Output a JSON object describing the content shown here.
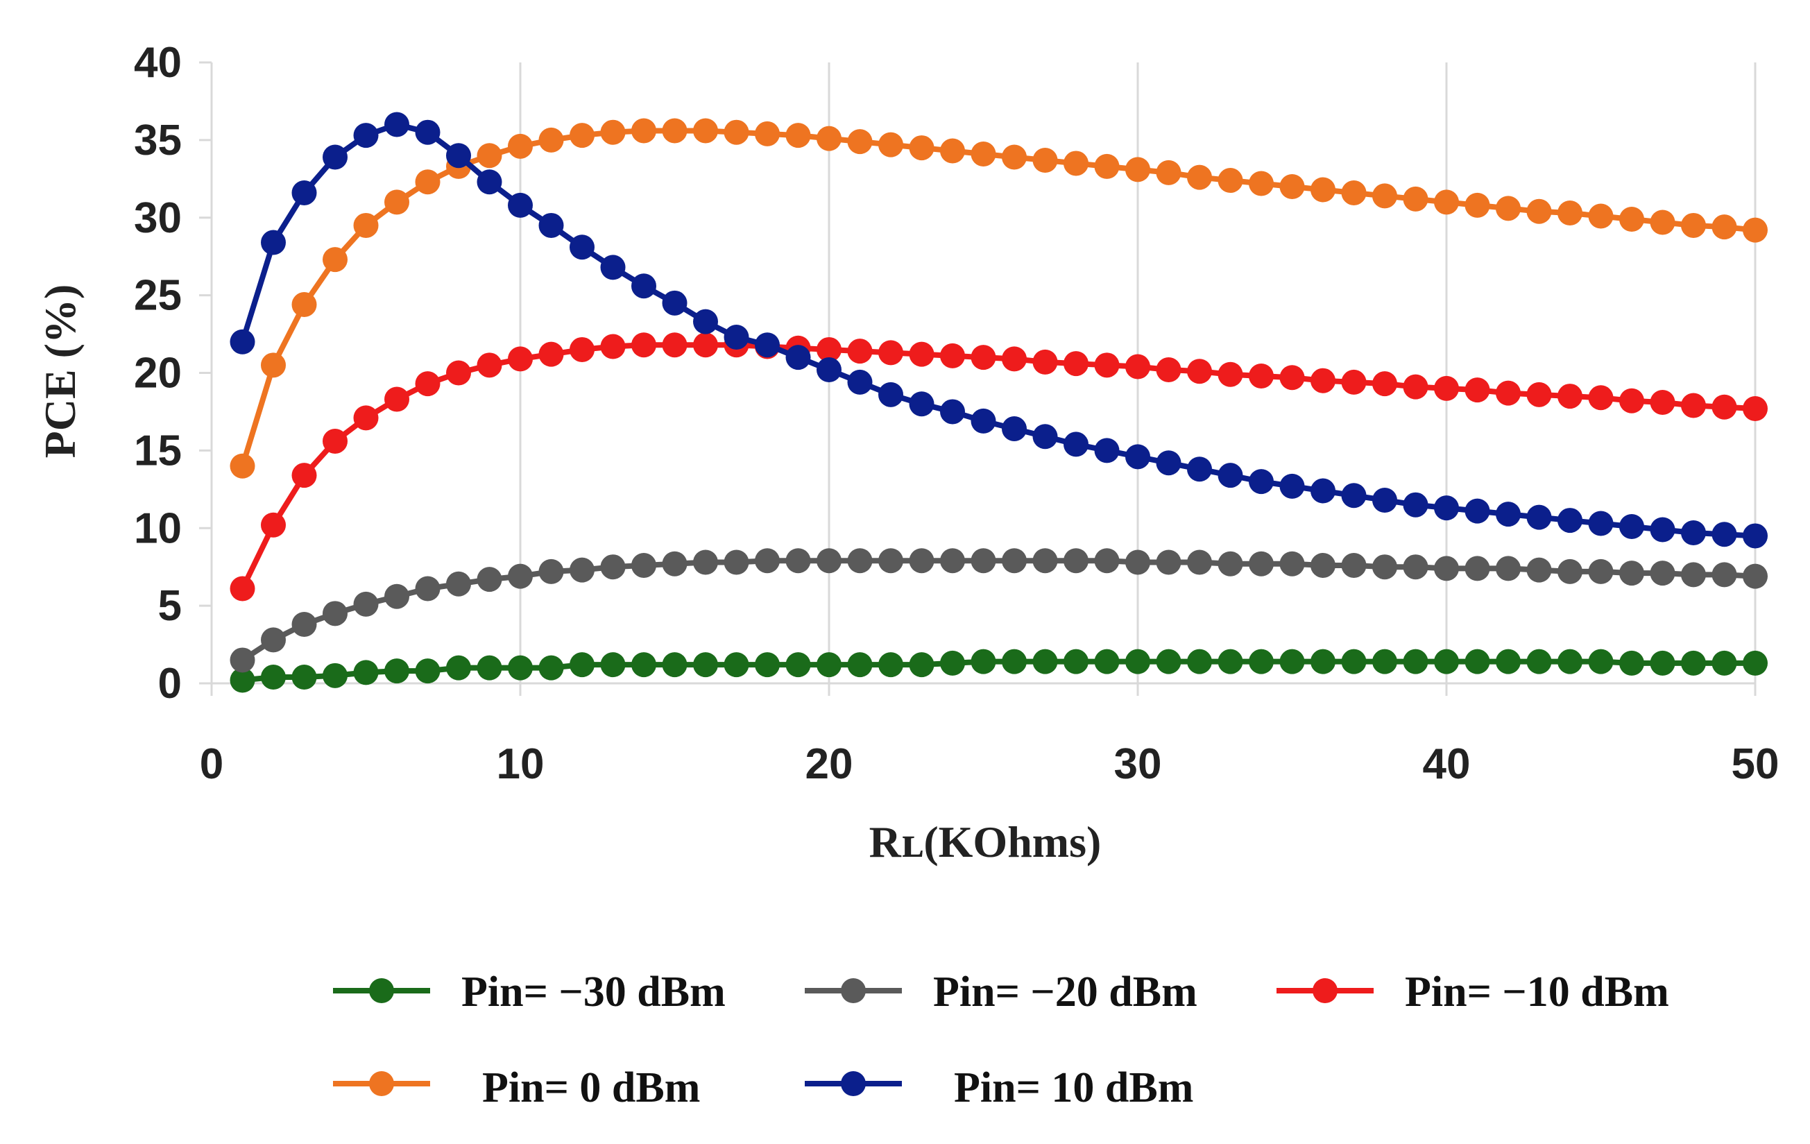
{
  "chart_data": {
    "type": "line",
    "title": "",
    "xlabel": "Rʟ(KOhms)",
    "ylabel": "PCE (%)",
    "xlim": [
      0,
      50
    ],
    "ylim": [
      0,
      40
    ],
    "x_ticks": [
      0,
      10,
      20,
      30,
      40,
      50
    ],
    "y_ticks": [
      0,
      5,
      10,
      15,
      20,
      25,
      30,
      35,
      40
    ],
    "grid": "vertical",
    "legend_position": "bottom",
    "x": [
      1,
      2,
      3,
      4,
      5,
      6,
      7,
      8,
      9,
      10,
      11,
      12,
      13,
      14,
      15,
      16,
      17,
      18,
      19,
      20,
      21,
      22,
      23,
      24,
      25,
      26,
      27,
      28,
      29,
      30,
      31,
      32,
      33,
      34,
      35,
      36,
      37,
      38,
      39,
      40,
      41,
      42,
      43,
      44,
      45,
      46,
      47,
      48,
      49,
      50
    ],
    "series": [
      {
        "name": "Pin= −30 dBm",
        "color": "#1a6b1a",
        "values": [
          0.2,
          0.4,
          0.4,
          0.5,
          0.7,
          0.8,
          0.8,
          1.0,
          1.0,
          1.0,
          1.0,
          1.2,
          1.2,
          1.2,
          1.2,
          1.2,
          1.2,
          1.2,
          1.2,
          1.2,
          1.2,
          1.2,
          1.2,
          1.3,
          1.4,
          1.4,
          1.4,
          1.4,
          1.4,
          1.4,
          1.4,
          1.4,
          1.4,
          1.4,
          1.4,
          1.4,
          1.4,
          1.4,
          1.4,
          1.4,
          1.4,
          1.4,
          1.4,
          1.4,
          1.4,
          1.3,
          1.3,
          1.3,
          1.3,
          1.3
        ]
      },
      {
        "name": "Pin= −20 dBm",
        "color": "#5a5a5a",
        "values": [
          1.5,
          2.8,
          3.8,
          4.5,
          5.1,
          5.6,
          6.1,
          6.4,
          6.7,
          6.9,
          7.2,
          7.3,
          7.5,
          7.6,
          7.7,
          7.8,
          7.8,
          7.9,
          7.9,
          7.9,
          7.9,
          7.9,
          7.9,
          7.9,
          7.9,
          7.9,
          7.9,
          7.9,
          7.9,
          7.8,
          7.8,
          7.8,
          7.7,
          7.7,
          7.7,
          7.6,
          7.6,
          7.5,
          7.5,
          7.4,
          7.4,
          7.4,
          7.3,
          7.2,
          7.2,
          7.1,
          7.1,
          7.0,
          7.0,
          6.9
        ]
      },
      {
        "name": "Pin= −10 dBm",
        "color": "#ee1c1c",
        "values": [
          6.1,
          10.2,
          13.4,
          15.6,
          17.1,
          18.3,
          19.3,
          20.0,
          20.5,
          20.9,
          21.2,
          21.5,
          21.7,
          21.8,
          21.8,
          21.8,
          21.8,
          21.7,
          21.6,
          21.5,
          21.4,
          21.3,
          21.2,
          21.1,
          21.0,
          20.9,
          20.7,
          20.6,
          20.5,
          20.4,
          20.2,
          20.1,
          19.9,
          19.8,
          19.7,
          19.5,
          19.4,
          19.3,
          19.1,
          19.0,
          18.9,
          18.7,
          18.6,
          18.5,
          18.4,
          18.2,
          18.1,
          17.9,
          17.8,
          17.7
        ]
      },
      {
        "name": "Pin= 0 dBm",
        "color": "#ee7421",
        "values": [
          14.0,
          20.5,
          24.4,
          27.3,
          29.5,
          31.0,
          32.3,
          33.3,
          34.0,
          34.6,
          35.0,
          35.3,
          35.5,
          35.6,
          35.6,
          35.6,
          35.5,
          35.4,
          35.3,
          35.1,
          34.9,
          34.7,
          34.5,
          34.3,
          34.1,
          33.9,
          33.7,
          33.5,
          33.3,
          33.1,
          32.9,
          32.6,
          32.4,
          32.2,
          32.0,
          31.8,
          31.6,
          31.4,
          31.2,
          31.0,
          30.8,
          30.6,
          30.4,
          30.3,
          30.1,
          29.9,
          29.7,
          29.5,
          29.4,
          29.2
        ]
      },
      {
        "name": "Pin= 10 dBm",
        "color": "#0b1f8c",
        "values": [
          22.0,
          28.4,
          31.6,
          33.9,
          35.3,
          36.0,
          35.5,
          34.0,
          32.3,
          30.8,
          29.5,
          28.1,
          26.8,
          25.6,
          24.5,
          23.3,
          22.3,
          21.8,
          21.0,
          20.2,
          19.4,
          18.6,
          18.0,
          17.5,
          16.9,
          16.4,
          15.9,
          15.4,
          15.0,
          14.6,
          14.2,
          13.8,
          13.4,
          13.0,
          12.7,
          12.4,
          12.1,
          11.8,
          11.5,
          11.3,
          11.1,
          10.9,
          10.7,
          10.5,
          10.3,
          10.1,
          9.9,
          9.7,
          9.6,
          9.5
        ]
      }
    ]
  }
}
